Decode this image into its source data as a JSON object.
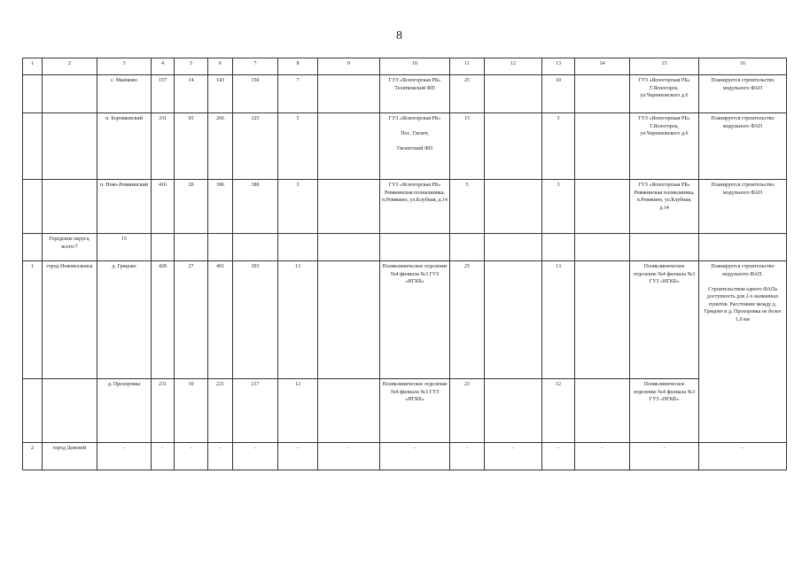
{
  "page_number": "8",
  "table": {
    "header": [
      "1",
      "2",
      "3",
      "4",
      "5",
      "6",
      "7",
      "8",
      "9",
      "10",
      "11",
      "12",
      "13",
      "14",
      "15",
      "16"
    ],
    "rows": [
      [
        "",
        "",
        "с. Машково",
        "157",
        "14",
        "143",
        "150",
        "7",
        "",
        "ГУЗ «Ясногорская РБ» Телятковский ФП",
        "25",
        "",
        "10",
        "",
        "ГУЗ «Ясногорская РБ» Г.Ясногорск, ул.Черняховского д.6",
        "Планируется строительство модульного ФАП"
      ],
      [
        "",
        "",
        "п. Боровковский",
        "331",
        "65",
        "266",
        "325",
        "5",
        "",
        "ГУЗ «Ясногорская РБ»\n\nПос. Гигант,\n\nГигантский ФП",
        "15",
        "",
        "5",
        "",
        "ГУЗ «Ясногорская РБ» Г.Ясногорск, ул.Черняховского д.6",
        "Планируется строительство модульного ФАП"
      ],
      [
        "",
        "",
        "п. Ново-Ревякинский",
        "416",
        "20",
        "396",
        "380",
        "3",
        "",
        "ГУЗ «Ясногорская РБ» Ревякинская поликлиника, п.Ревякино, ул.Клубная, д.14",
        "5",
        "",
        "3",
        "",
        "ГУЗ «Ясногорская РБ» Ревякинская поликлиника, п.Ревякино, ул.Клубная, д.14",
        "Планируется строительство модульного ФАП"
      ],
      [
        "",
        "Городские округа, всего:7",
        "15",
        "",
        "",
        "",
        "",
        "",
        "",
        "",
        "",
        "",
        "",
        "",
        "",
        ""
      ],
      [
        "1",
        "город Новомосковск",
        "д. Грицово",
        "428",
        "27",
        "401",
        "393",
        "13",
        "",
        "Поликлиническое отделение №4 филиала №3 ГУЗ «НГКБ»",
        "25",
        "",
        "13",
        "",
        "Поликлиническое отделение №4 филиала №3 ГУЗ «НГКБ»",
        "Планируется строительство модульного ФАП.\n\nСтроительством одного ФАПа доступность для 2-х названных пунктов. Расстояние между д. Грицово и д. Прохоровка не более 1,0 км"
      ],
      [
        "",
        "",
        "д. Прохоровка",
        "231",
        "10",
        "221",
        "217",
        "12",
        "",
        "Поликлиническое отделение №4 филиала №3 ГУЗ «НГКБ»",
        "23",
        "",
        "12",
        "",
        "Поликлиническое отделение №4 филиала №3 ГУЗ «НГКБ»",
        null
      ],
      [
        "2",
        "город Донской",
        "-",
        "-",
        "-",
        "-",
        "-",
        "-",
        "-",
        "-",
        "-",
        "-",
        "-",
        "-",
        "-",
        "-"
      ]
    ]
  }
}
